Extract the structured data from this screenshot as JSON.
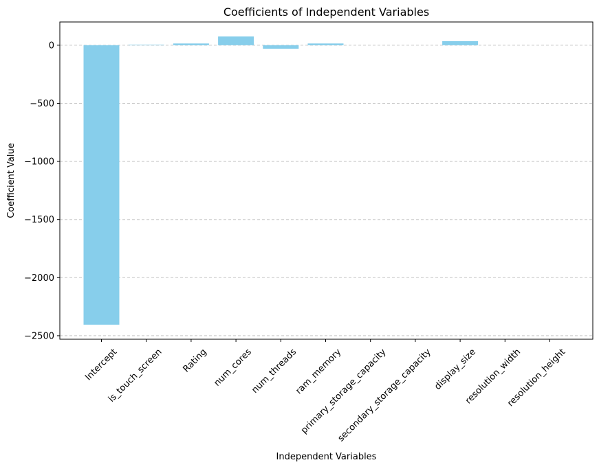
{
  "chart_data": {
    "type": "bar",
    "title": "Coefficients of Independent Variables",
    "xlabel": "Independent Variables",
    "ylabel": "Coefficient Value",
    "categories": [
      "Intercept",
      "is_touch_screen",
      "Rating",
      "num_cores",
      "num_threads",
      "ram_memory",
      "primary_storage_capacity",
      "secondary_storage_capacity",
      "display_size",
      "resolution_width",
      "resolution_height"
    ],
    "values": [
      -2405,
      5,
      15,
      75,
      -30,
      15,
      0,
      0,
      35,
      0,
      0
    ],
    "ylim": [
      -2530,
      200
    ],
    "yticks": [
      0,
      -500,
      -1000,
      -1500,
      -2000,
      -2500
    ],
    "ytick_labels": [
      "0",
      "−500",
      "−1000",
      "−1500",
      "−2000",
      "−2500"
    ],
    "grid": "y-dashed",
    "bar_color": "#87CEEB",
    "grid_color": "#c8c8c8"
  }
}
